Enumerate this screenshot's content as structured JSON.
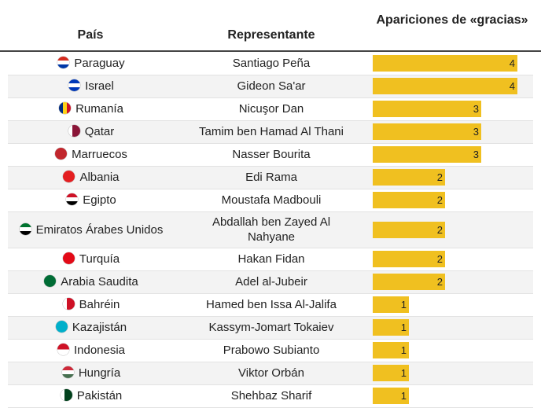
{
  "header": {
    "country": "País",
    "representative": "Representante",
    "count": "Apariciones de «gracias»"
  },
  "chart_data": {
    "type": "table",
    "max_value": 4,
    "columns": [
      "País",
      "Representante",
      "Apariciones de «gracias»"
    ],
    "bar_color": "#f0c020",
    "rows": [
      {
        "country": "Paraguay",
        "representative": "Santiago Peña",
        "value": 4,
        "flag": "paraguay-flag-icon",
        "flag_colors": [
          "#d52b1e",
          "#ffffff",
          "#0038a8"
        ],
        "flag_style": "h"
      },
      {
        "country": "Israel",
        "representative": "Gideon Sa'ar",
        "value": 4,
        "flag": "israel-flag-icon",
        "flag_colors": [
          "#0038b8",
          "#ffffff",
          "#0038b8"
        ],
        "flag_style": "h"
      },
      {
        "country": "Rumanía",
        "representative": "Nicuşor Dan",
        "value": 3,
        "flag": "romania-flag-icon",
        "flag_colors": [
          "#002b7f",
          "#fcd116",
          "#ce1126"
        ],
        "flag_style": "v"
      },
      {
        "country": "Qatar",
        "representative": "Tamim ben Hamad Al Thani",
        "value": 3,
        "flag": "qatar-flag-icon",
        "flag_colors": [
          "#ffffff",
          "#8a1538",
          "#8a1538"
        ],
        "flag_style": "v"
      },
      {
        "country": "Marruecos",
        "representative": "Nasser Bourita",
        "value": 3,
        "flag": "morocco-flag-icon",
        "flag_colors": [
          "#c1272d",
          "#c1272d",
          "#c1272d"
        ],
        "flag_style": "h"
      },
      {
        "country": "Albania",
        "representative": "Edi Rama",
        "value": 2,
        "flag": "albania-flag-icon",
        "flag_colors": [
          "#e41e20",
          "#e41e20",
          "#e41e20"
        ],
        "flag_style": "h"
      },
      {
        "country": "Egipto",
        "representative": "Moustafa Madbouli",
        "value": 2,
        "flag": "egypt-flag-icon",
        "flag_colors": [
          "#ce1126",
          "#ffffff",
          "#000000"
        ],
        "flag_style": "h"
      },
      {
        "country": "Emiratos Árabes Unidos",
        "representative": "Abdallah ben Zayed Al Nahyane",
        "value": 2,
        "flag": "uae-flag-icon",
        "flag_colors": [
          "#00732f",
          "#ffffff",
          "#000000"
        ],
        "flag_style": "h"
      },
      {
        "country": "Turquía",
        "representative": "Hakan Fidan",
        "value": 2,
        "flag": "turkey-flag-icon",
        "flag_colors": [
          "#e30a17",
          "#e30a17",
          "#e30a17"
        ],
        "flag_style": "h"
      },
      {
        "country": "Arabia Saudita",
        "representative": "Adel al-Jubeir",
        "value": 2,
        "flag": "saudi-arabia-flag-icon",
        "flag_colors": [
          "#006c35",
          "#006c35",
          "#006c35"
        ],
        "flag_style": "h"
      },
      {
        "country": "Bahréin",
        "representative": "Hamed ben Issa Al-Jalifa",
        "value": 1,
        "flag": "bahrain-flag-icon",
        "flag_colors": [
          "#ffffff",
          "#ce1126",
          "#ce1126"
        ],
        "flag_style": "v"
      },
      {
        "country": "Kazajistán",
        "representative": "Kassym-Jomart Tokaiev",
        "value": 1,
        "flag": "kazakhstan-flag-icon",
        "flag_colors": [
          "#00afca",
          "#00afca",
          "#00afca"
        ],
        "flag_style": "h"
      },
      {
        "country": "Indonesia",
        "representative": "Prabowo Subianto",
        "value": 1,
        "flag": "indonesia-flag-icon",
        "flag_colors": [
          "#ce1126",
          "#ffffff",
          "#ffffff"
        ],
        "flag_style": "h2"
      },
      {
        "country": "Hungría",
        "representative": "Viktor Orbán",
        "value": 1,
        "flag": "hungary-flag-icon",
        "flag_colors": [
          "#ce2939",
          "#ffffff",
          "#477050"
        ],
        "flag_style": "h"
      },
      {
        "country": "Pakistán",
        "representative": "Shehbaz Sharif",
        "value": 1,
        "flag": "pakistan-flag-icon",
        "flag_colors": [
          "#ffffff",
          "#01411c",
          "#01411c"
        ],
        "flag_style": "v"
      }
    ]
  }
}
